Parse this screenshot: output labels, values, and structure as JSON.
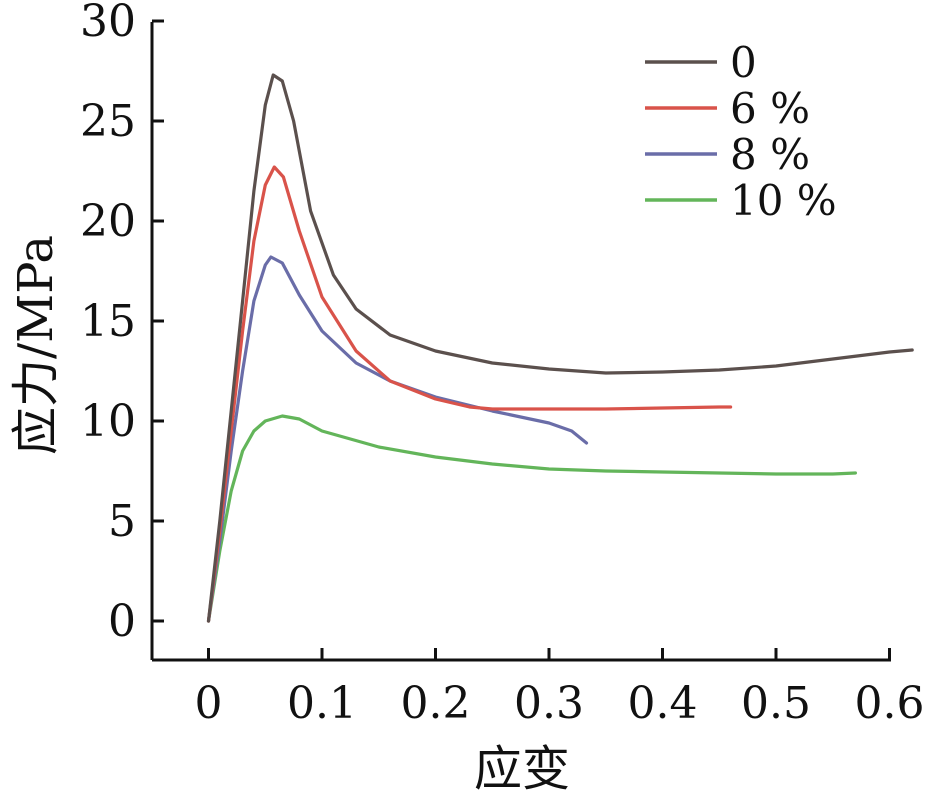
{
  "chart_data": {
    "type": "line",
    "xlabel": "应变",
    "ylabel": "应力/MPa",
    "xlim": [
      -0.05,
      0.6
    ],
    "ylim": [
      -2,
      30
    ],
    "xticks": [
      0,
      0.1,
      0.2,
      0.3,
      0.4,
      0.5,
      0.6
    ],
    "xtick_labels": [
      "0",
      "0.1",
      "0.2",
      "0.3",
      "0.4",
      "0.5",
      "0.6"
    ],
    "yticks": [
      0,
      5,
      10,
      15,
      20,
      25,
      30
    ],
    "ytick_labels": [
      "0",
      "5",
      "10",
      "15",
      "20",
      "25",
      "30"
    ],
    "grid": false,
    "legend_position": "top-right",
    "series": [
      {
        "name": "0",
        "color": "#5b504d",
        "points": [
          [
            0,
            0
          ],
          [
            0.01,
            5
          ],
          [
            0.02,
            10.5
          ],
          [
            0.03,
            16
          ],
          [
            0.04,
            21.5
          ],
          [
            0.05,
            25.8
          ],
          [
            0.057,
            27.3
          ],
          [
            0.065,
            27
          ],
          [
            0.075,
            25
          ],
          [
            0.09,
            20.5
          ],
          [
            0.11,
            17.3
          ],
          [
            0.13,
            15.6
          ],
          [
            0.16,
            14.3
          ],
          [
            0.2,
            13.5
          ],
          [
            0.25,
            12.9
          ],
          [
            0.3,
            12.6
          ],
          [
            0.35,
            12.4
          ],
          [
            0.4,
            12.45
          ],
          [
            0.45,
            12.55
          ],
          [
            0.5,
            12.75
          ],
          [
            0.55,
            13.1
          ],
          [
            0.6,
            13.45
          ],
          [
            0.62,
            13.55
          ]
        ]
      },
      {
        "name": "6 %",
        "color": "#d9534a",
        "points": [
          [
            0,
            0
          ],
          [
            0.01,
            4.5
          ],
          [
            0.02,
            9.5
          ],
          [
            0.03,
            14.5
          ],
          [
            0.04,
            19
          ],
          [
            0.05,
            21.8
          ],
          [
            0.058,
            22.7
          ],
          [
            0.066,
            22.2
          ],
          [
            0.08,
            19.5
          ],
          [
            0.1,
            16.2
          ],
          [
            0.13,
            13.5
          ],
          [
            0.16,
            12
          ],
          [
            0.2,
            11.1
          ],
          [
            0.23,
            10.7
          ],
          [
            0.25,
            10.6
          ],
          [
            0.3,
            10.6
          ],
          [
            0.35,
            10.6
          ],
          [
            0.4,
            10.65
          ],
          [
            0.45,
            10.7
          ],
          [
            0.46,
            10.7
          ]
        ]
      },
      {
        "name": "8 %",
        "color": "#6a6da8",
        "points": [
          [
            0,
            0
          ],
          [
            0.01,
            4
          ],
          [
            0.02,
            8.5
          ],
          [
            0.03,
            12.5
          ],
          [
            0.04,
            16
          ],
          [
            0.05,
            17.8
          ],
          [
            0.055,
            18.2
          ],
          [
            0.065,
            17.9
          ],
          [
            0.08,
            16.3
          ],
          [
            0.1,
            14.5
          ],
          [
            0.13,
            12.9
          ],
          [
            0.16,
            12
          ],
          [
            0.2,
            11.2
          ],
          [
            0.25,
            10.5
          ],
          [
            0.3,
            9.9
          ],
          [
            0.32,
            9.5
          ],
          [
            0.333,
            8.9
          ]
        ]
      },
      {
        "name": "10 %",
        "color": "#63b55a",
        "points": [
          [
            0,
            0
          ],
          [
            0.01,
            3.5
          ],
          [
            0.02,
            6.5
          ],
          [
            0.03,
            8.5
          ],
          [
            0.04,
            9.5
          ],
          [
            0.05,
            10
          ],
          [
            0.065,
            10.25
          ],
          [
            0.08,
            10.1
          ],
          [
            0.1,
            9.5
          ],
          [
            0.15,
            8.7
          ],
          [
            0.2,
            8.2
          ],
          [
            0.25,
            7.85
          ],
          [
            0.3,
            7.6
          ],
          [
            0.35,
            7.5
          ],
          [
            0.4,
            7.45
          ],
          [
            0.45,
            7.4
          ],
          [
            0.5,
            7.35
          ],
          [
            0.55,
            7.35
          ],
          [
            0.57,
            7.4
          ]
        ]
      }
    ]
  }
}
